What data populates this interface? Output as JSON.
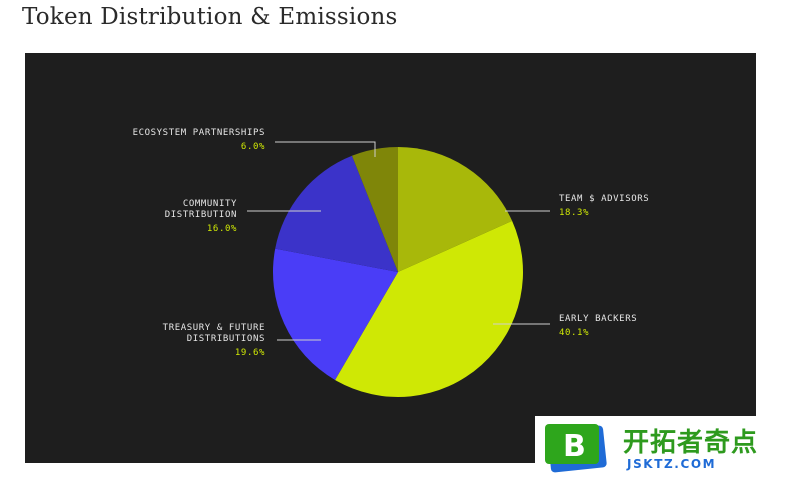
{
  "page": {
    "title": "Token Distribution & Emissions"
  },
  "chart_data": {
    "type": "pie",
    "title": "",
    "start_angle": "top",
    "direction": "clockwise",
    "slices": [
      {
        "label_lines": [
          "TEAM $ ADVISORS"
        ],
        "value": 18.3,
        "value_text": "18.3%",
        "color": "#a8b80a",
        "label_side": "right"
      },
      {
        "label_lines": [
          "EARLY BACKERS"
        ],
        "value": 40.1,
        "value_text": "40.1%",
        "color": "#cfe805",
        "label_side": "right"
      },
      {
        "label_lines": [
          "TREASURY & FUTURE",
          "DISTRIBUTIONS"
        ],
        "value": 19.6,
        "value_text": "19.6%",
        "color": "#4a3df7",
        "label_side": "left"
      },
      {
        "label_lines": [
          "COMMUNITY",
          "DISTRIBUTION"
        ],
        "value": 16.0,
        "value_text": "16.0%",
        "color": "#3b33c9",
        "label_side": "left"
      },
      {
        "label_lines": [
          "ECOSYSTEM PARTNERSHIPS"
        ],
        "value": 6.0,
        "value_text": "6.0%",
        "color": "#7f8609",
        "label_side": "left"
      }
    ],
    "background": "#1e1e1e",
    "label_color": "#e6e6e6",
    "value_color": "#cfe805",
    "leader_color": "#cfcfcf"
  },
  "watermark": {
    "logo_letter": "B",
    "chinese_text": "开拓者奇点",
    "site_text": "JSKTZ.COM"
  }
}
